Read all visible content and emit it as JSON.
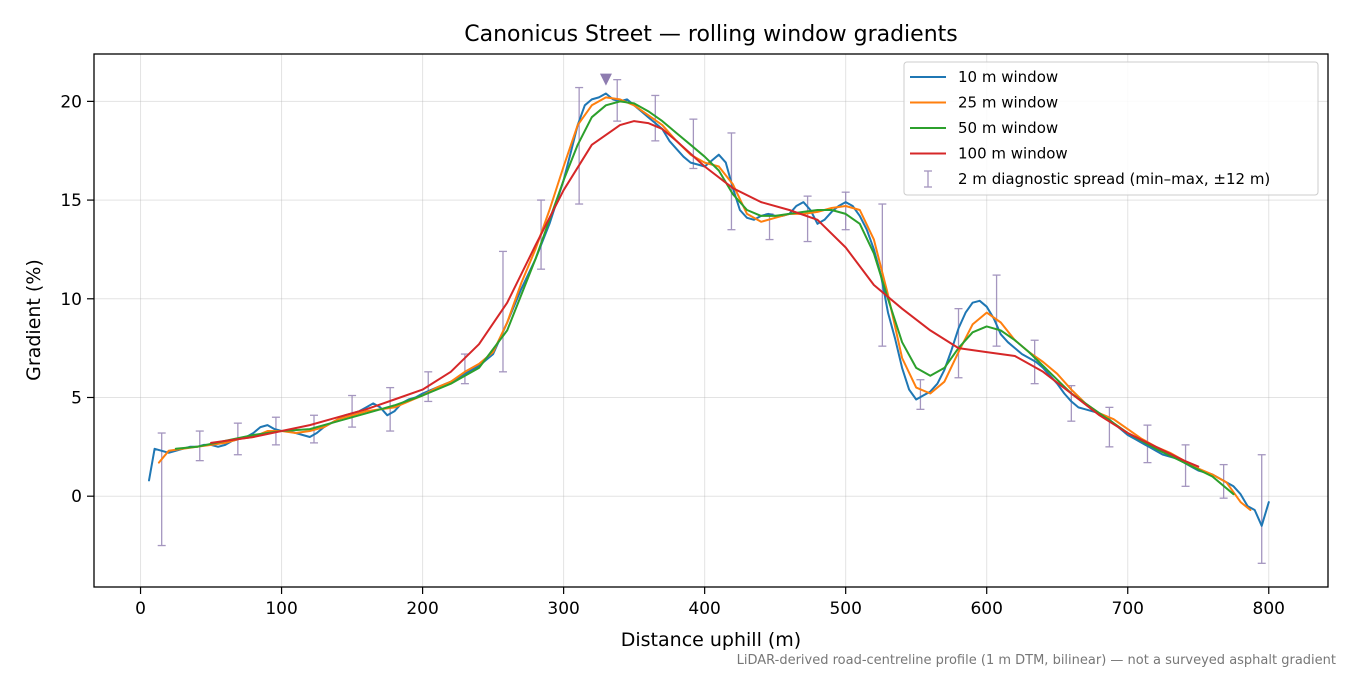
{
  "chart_data": {
    "type": "line",
    "title": "Canonicus Street — rolling window gradients",
    "xlabel": "Distance uphill (m)",
    "ylabel": "Gradient (%)",
    "xlim": [
      -33,
      842
    ],
    "ylim": [
      -4.6,
      22.4
    ],
    "xticks": [
      0,
      100,
      200,
      300,
      400,
      500,
      600,
      700,
      800
    ],
    "yticks": [
      0,
      5,
      10,
      15,
      20
    ],
    "grid": true,
    "legend_position": "upper right",
    "footnote": "LiDAR-derived road-centreline profile (1 m DTM, bilinear) — not a surveyed asphalt gradient",
    "peak_marker": {
      "x": 330,
      "y": 21.1,
      "color": "#8e7cb0"
    },
    "series": [
      {
        "name": "10 m window",
        "color": "#1f77b4",
        "x": [
          6,
          10,
          15,
          20,
          25,
          30,
          35,
          40,
          45,
          50,
          55,
          60,
          65,
          70,
          75,
          80,
          85,
          90,
          95,
          100,
          105,
          110,
          115,
          120,
          125,
          130,
          135,
          140,
          145,
          150,
          155,
          160,
          165,
          170,
          175,
          180,
          185,
          190,
          195,
          200,
          210,
          220,
          230,
          240,
          250,
          260,
          270,
          280,
          290,
          300,
          305,
          310,
          315,
          320,
          325,
          330,
          335,
          340,
          345,
          350,
          355,
          360,
          365,
          370,
          375,
          380,
          385,
          390,
          395,
          400,
          405,
          410,
          415,
          420,
          425,
          430,
          435,
          440,
          445,
          450,
          455,
          460,
          465,
          470,
          475,
          480,
          485,
          490,
          495,
          500,
          505,
          510,
          515,
          520,
          525,
          530,
          535,
          540,
          545,
          550,
          555,
          560,
          565,
          570,
          575,
          580,
          585,
          590,
          595,
          600,
          605,
          610,
          615,
          620,
          625,
          630,
          635,
          640,
          645,
          650,
          655,
          660,
          665,
          670,
          675,
          680,
          685,
          690,
          695,
          700,
          705,
          710,
          715,
          720,
          725,
          730,
          735,
          740,
          745,
          750,
          755,
          760,
          765,
          770,
          775,
          780,
          785,
          790,
          795,
          800
        ],
        "values": [
          0.8,
          2.4,
          2.3,
          2.2,
          2.3,
          2.4,
          2.5,
          2.5,
          2.6,
          2.6,
          2.5,
          2.6,
          2.8,
          2.9,
          3.0,
          3.2,
          3.5,
          3.6,
          3.4,
          3.3,
          3.3,
          3.2,
          3.1,
          3.0,
          3.2,
          3.5,
          3.7,
          3.9,
          4.1,
          4.2,
          4.3,
          4.5,
          4.7,
          4.5,
          4.1,
          4.3,
          4.7,
          4.9,
          5.0,
          5.2,
          5.5,
          5.8,
          6.2,
          6.6,
          7.2,
          8.8,
          10.5,
          12.0,
          13.8,
          16.0,
          17.4,
          18.8,
          19.8,
          20.1,
          20.2,
          20.4,
          20.1,
          20.0,
          20.1,
          19.8,
          19.5,
          19.2,
          18.9,
          18.6,
          18.0,
          17.6,
          17.2,
          16.9,
          16.8,
          16.7,
          17.0,
          17.3,
          16.9,
          15.6,
          14.5,
          14.1,
          14.0,
          14.2,
          14.3,
          14.2,
          14.2,
          14.3,
          14.7,
          14.9,
          14.5,
          13.8,
          14.0,
          14.4,
          14.7,
          14.9,
          14.7,
          14.2,
          13.5,
          12.5,
          11.2,
          9.3,
          8.0,
          6.5,
          5.4,
          4.9,
          5.1,
          5.3,
          5.7,
          6.4,
          7.4,
          8.5,
          9.3,
          9.8,
          9.9,
          9.6,
          9.0,
          8.2,
          7.8,
          7.5,
          7.2,
          7.0,
          6.8,
          6.5,
          6.1,
          5.7,
          5.2,
          4.8,
          4.5,
          4.4,
          4.3,
          4.2,
          4.0,
          3.7,
          3.4,
          3.1,
          2.9,
          2.7,
          2.5,
          2.3,
          2.1,
          2.0,
          1.9,
          1.7,
          1.5,
          1.3,
          1.2,
          1.1,
          0.9,
          0.7,
          0.5,
          0.1,
          -0.5,
          -0.7,
          -1.5,
          -0.3
        ]
      },
      {
        "name": "25 m window",
        "color": "#ff7f0e",
        "x": [
          13,
          20,
          30,
          40,
          50,
          60,
          70,
          80,
          90,
          100,
          110,
          120,
          130,
          140,
          150,
          160,
          170,
          180,
          190,
          200,
          210,
          220,
          230,
          240,
          250,
          260,
          270,
          280,
          290,
          300,
          310,
          320,
          330,
          340,
          350,
          360,
          370,
          380,
          390,
          400,
          410,
          420,
          430,
          440,
          450,
          460,
          470,
          480,
          490,
          500,
          510,
          520,
          530,
          540,
          550,
          560,
          570,
          580,
          590,
          600,
          610,
          620,
          630,
          640,
          650,
          660,
          670,
          680,
          690,
          700,
          710,
          720,
          730,
          740,
          750,
          760,
          770,
          780,
          787
        ],
        "values": [
          1.7,
          2.3,
          2.4,
          2.5,
          2.6,
          2.7,
          2.9,
          3.0,
          3.3,
          3.3,
          3.2,
          3.3,
          3.5,
          3.9,
          4.1,
          4.3,
          4.4,
          4.5,
          4.8,
          5.1,
          5.5,
          5.8,
          6.3,
          6.7,
          7.3,
          8.8,
          10.8,
          12.5,
          14.5,
          16.7,
          18.8,
          19.8,
          20.2,
          20.1,
          19.8,
          19.3,
          18.8,
          18.0,
          17.3,
          16.9,
          16.7,
          15.8,
          14.3,
          13.9,
          14.1,
          14.3,
          14.3,
          14.4,
          14.6,
          14.7,
          14.5,
          13.0,
          10.2,
          7.0,
          5.5,
          5.2,
          5.8,
          7.3,
          8.7,
          9.3,
          8.8,
          7.9,
          7.3,
          6.8,
          6.2,
          5.4,
          4.7,
          4.2,
          3.9,
          3.4,
          2.9,
          2.5,
          2.2,
          1.8,
          1.4,
          1.1,
          0.7,
          -0.3,
          -0.7
        ]
      },
      {
        "name": "50 m window",
        "color": "#2ca02c",
        "x": [
          25,
          40,
          60,
          80,
          100,
          120,
          140,
          160,
          180,
          200,
          220,
          240,
          260,
          280,
          300,
          310,
          320,
          330,
          340,
          350,
          360,
          370,
          380,
          390,
          400,
          410,
          420,
          430,
          440,
          450,
          460,
          470,
          480,
          490,
          500,
          510,
          520,
          530,
          540,
          550,
          560,
          570,
          580,
          590,
          600,
          610,
          620,
          630,
          640,
          650,
          660,
          680,
          700,
          720,
          740,
          760,
          775
        ],
        "values": [
          2.4,
          2.5,
          2.8,
          3.1,
          3.3,
          3.4,
          3.8,
          4.2,
          4.6,
          5.1,
          5.7,
          6.5,
          8.4,
          12.0,
          16.0,
          17.8,
          19.2,
          19.8,
          20.0,
          19.9,
          19.5,
          19.0,
          18.4,
          17.8,
          17.2,
          16.5,
          15.3,
          14.5,
          14.2,
          14.2,
          14.3,
          14.4,
          14.5,
          14.5,
          14.3,
          13.8,
          12.3,
          10.0,
          7.8,
          6.5,
          6.1,
          6.5,
          7.5,
          8.3,
          8.6,
          8.4,
          7.9,
          7.3,
          6.6,
          5.9,
          5.2,
          4.2,
          3.2,
          2.4,
          1.7,
          1.0,
          0.1
        ]
      },
      {
        "name": "100 m window",
        "color": "#d62728",
        "x": [
          50,
          80,
          100,
          120,
          140,
          160,
          180,
          200,
          220,
          240,
          260,
          280,
          300,
          320,
          340,
          350,
          360,
          370,
          380,
          400,
          420,
          440,
          460,
          480,
          500,
          520,
          540,
          560,
          580,
          600,
          620,
          640,
          660,
          680,
          700,
          720,
          740,
          750
        ],
        "values": [
          2.7,
          3.0,
          3.3,
          3.6,
          4.0,
          4.4,
          4.9,
          5.4,
          6.3,
          7.7,
          9.8,
          12.7,
          15.5,
          17.8,
          18.8,
          19.0,
          18.9,
          18.6,
          18.0,
          16.7,
          15.6,
          14.9,
          14.5,
          14.0,
          12.6,
          10.7,
          9.5,
          8.4,
          7.5,
          7.3,
          7.1,
          6.3,
          5.2,
          4.1,
          3.2,
          2.5,
          1.8,
          1.5
        ]
      }
    ],
    "error_bars": {
      "name": "2 m diagnostic spread (min–max, ±12 m)",
      "color": "#8e7cb0",
      "x": [
        15,
        42,
        69,
        96,
        123,
        150,
        177,
        204,
        230,
        257,
        284,
        311,
        338,
        365,
        392,
        419,
        446,
        473,
        500,
        526,
        553,
        580,
        607,
        634,
        660,
        687,
        714,
        741,
        768,
        795
      ],
      "low": [
        -2.5,
        1.8,
        2.1,
        2.6,
        2.7,
        3.5,
        3.3,
        4.8,
        5.7,
        6.3,
        11.5,
        14.8,
        19.0,
        18.0,
        16.6,
        13.5,
        13.0,
        12.9,
        13.5,
        7.6,
        4.4,
        6.0,
        7.6,
        5.7,
        3.8,
        2.5,
        1.7,
        0.5,
        -0.1,
        -3.4
      ],
      "high": [
        3.2,
        3.3,
        3.7,
        4.0,
        4.1,
        5.1,
        5.5,
        6.3,
        7.2,
        12.4,
        15.0,
        20.7,
        21.1,
        20.3,
        19.1,
        18.4,
        14.3,
        15.2,
        15.4,
        14.8,
        5.9,
        9.5,
        11.2,
        7.9,
        5.6,
        4.5,
        3.6,
        2.6,
        1.6,
        2.1
      ]
    }
  }
}
